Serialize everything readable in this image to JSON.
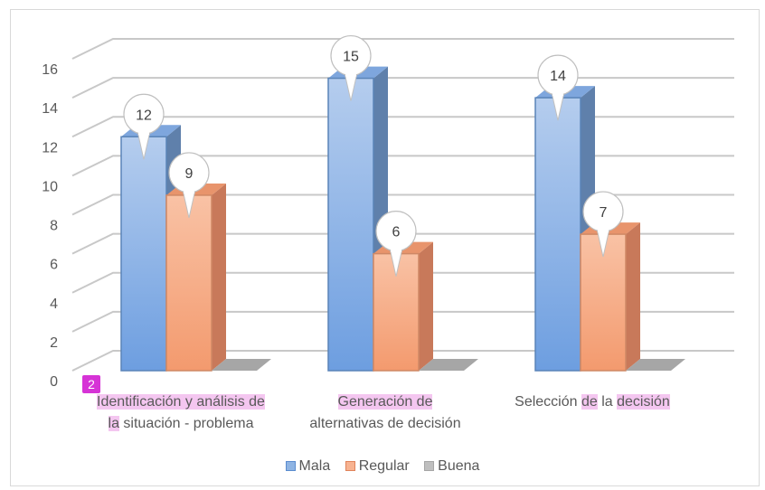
{
  "chart_data": {
    "type": "bar",
    "categories": [
      [
        "Identificación y análisis de",
        "la situación - problema"
      ],
      [
        "Generación de",
        "alternativas de decisión"
      ],
      [
        "Selección de la decisión"
      ]
    ],
    "series": [
      {
        "name": "Mala",
        "values": [
          12,
          15,
          14
        ],
        "color": "#6a9bd8"
      },
      {
        "name": "Regular",
        "values": [
          9,
          6,
          7
        ],
        "color": "#f4a077"
      },
      {
        "name": "Buena",
        "values": [
          0,
          0,
          0
        ],
        "color": "#a6a6a6"
      }
    ],
    "ylim": [
      0,
      16
    ],
    "yticks": [
      0,
      2,
      4,
      6,
      8,
      10,
      12,
      14,
      16
    ],
    "grid": true,
    "legend": "bottom",
    "three_d": true
  },
  "annotations": {
    "badge": "2"
  }
}
